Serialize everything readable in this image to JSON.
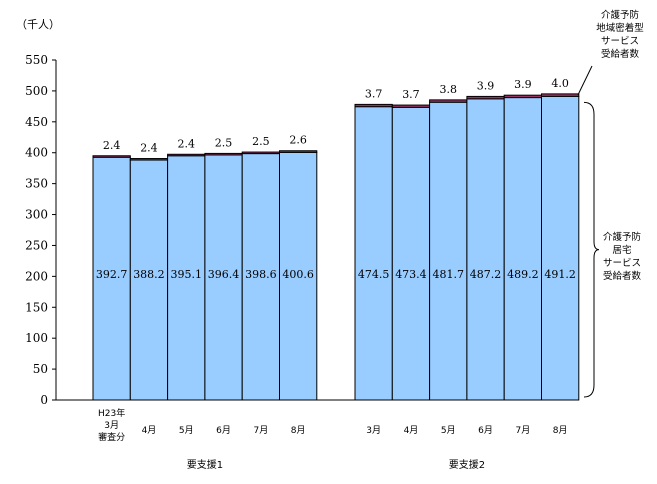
{
  "chart_data": {
    "type": "bar",
    "stacked": true,
    "unit": "（千人）",
    "ylim": [
      0,
      550
    ],
    "yticks": [
      0,
      50,
      100,
      150,
      200,
      250,
      300,
      350,
      400,
      450,
      500,
      550
    ],
    "groups": [
      {
        "label": "要支援1",
        "categories": [
          [
            "H23年",
            "3月",
            "審査分"
          ],
          [
            "4月"
          ],
          [
            "5月"
          ],
          [
            "6月"
          ],
          [
            "7月"
          ],
          [
            "8月"
          ]
        ],
        "home": [
          392.7,
          388.2,
          395.1,
          396.4,
          398.6,
          400.6
        ],
        "community": [
          2.4,
          2.4,
          2.4,
          2.5,
          2.5,
          2.6
        ],
        "community_labels": [
          "2.4",
          "2.4",
          "2.4",
          "2.5",
          "2.5",
          "2.6"
        ]
      },
      {
        "label": "要支援2",
        "categories": [
          [
            "3月"
          ],
          [
            "4月"
          ],
          [
            "5月"
          ],
          [
            "6月"
          ],
          [
            "7月"
          ],
          [
            "8月"
          ]
        ],
        "home": [
          474.5,
          473.4,
          481.7,
          487.2,
          489.2,
          491.2
        ],
        "community": [
          3.7,
          3.7,
          3.8,
          3.9,
          3.9,
          4.0
        ],
        "community_labels": [
          "3.7",
          "3.7",
          "3.8",
          "3.9",
          "3.9",
          "4.0"
        ]
      }
    ],
    "series": [
      {
        "name": "介護予防居宅サービス受給者数",
        "name_lines": [
          "介護予防",
          "居宅",
          "サービス",
          "受給者数"
        ],
        "color": "#99ccff"
      },
      {
        "name": "介護予防地域密着型サービス受給者数",
        "name_lines": [
          "介護予防",
          "地域密着型",
          "サービス",
          "受給者数"
        ],
        "color": "#993366"
      }
    ]
  }
}
